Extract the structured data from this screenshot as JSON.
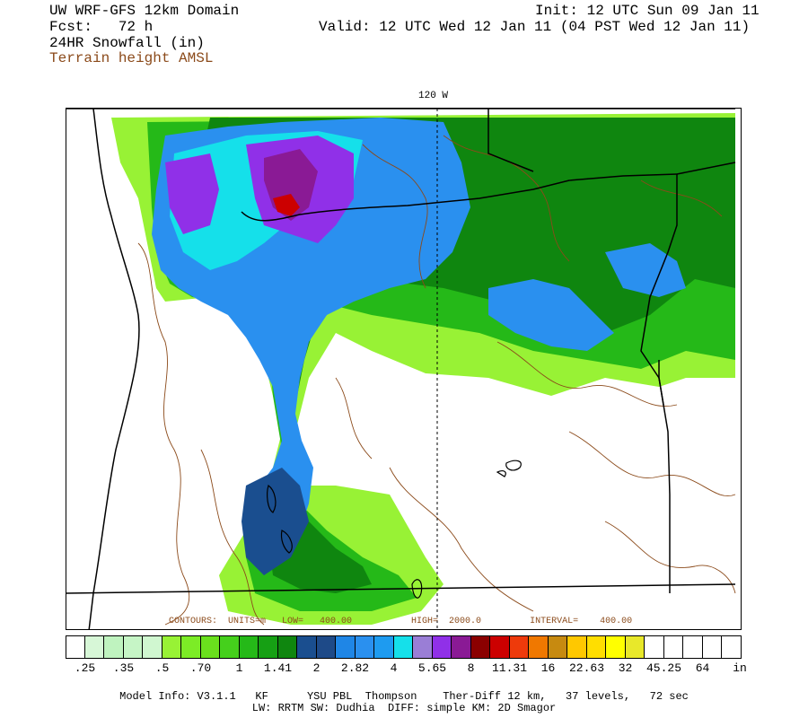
{
  "header": {
    "model_title": "UW WRF-GFS 12km Domain",
    "forecast": "Fcst:   72 h",
    "variable": "24HR Snowfall (in)",
    "overlay": "Terrain height AMSL",
    "init": "Init: 12 UTC Sun 09 Jan 11",
    "valid": "Valid: 12 UTC Wed 12 Jan 11 (04 PST Wed 12 Jan 11)"
  },
  "map": {
    "meridian_label": "120 W",
    "contour_info": "CONTOURS:  UNITS=m   LOW=   400.00           HIGH=  2000.0         INTERVAL=    400.00",
    "colors": {
      "border": "#000000",
      "terrain_contour": "#8b4a1a",
      "background": "#ffffff"
    }
  },
  "colorbar": {
    "unit": "in",
    "colors": [
      "#ffffff",
      "#d7f7d7",
      "#bff3bf",
      "#c6f5c6",
      "#d0f7d0",
      "#98f235",
      "#7cec26",
      "#6ae01d",
      "#45d01c",
      "#25b918",
      "#16a014",
      "#0f860f",
      "#1a4e8f",
      "#1e4a88",
      "#1f86e6",
      "#2a90ef",
      "#1e9bf0",
      "#15e0ea",
      "#9a7ed6",
      "#9030e8",
      "#8a1a95",
      "#8b0000",
      "#cc0000",
      "#ee3a0b",
      "#f07800",
      "#c78a10",
      "#ffc800",
      "#ffde00",
      "#ffff00",
      "#e8e82a",
      "#ffffff",
      "#ffffff",
      "#ffffff",
      "#ffffff",
      "#ffffff"
    ],
    "tick_labels": [
      ".25",
      ".35",
      ".5",
      ".70",
      "1",
      "1.41",
      "2",
      "2.82",
      "4",
      "5.65",
      "8",
      "11.31",
      "16",
      "22.63",
      "32",
      "45.25",
      "64"
    ]
  },
  "footer": {
    "line1": "Model Info: V3.1.1   KF      YSU PBL  Thompson    Ther-Diff 12 km,   37 levels,   72 sec",
    "line2": "LW: RRTM SW: Dudhia  DIFF: simple KM: 2D Smagor"
  }
}
